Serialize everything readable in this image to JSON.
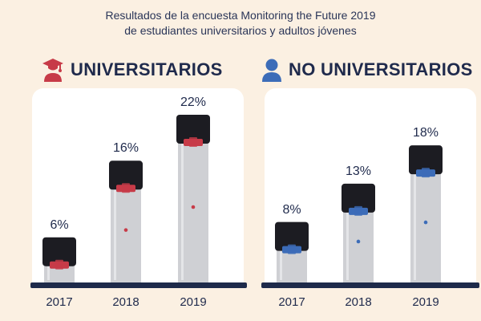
{
  "title": {
    "line1": "Resultados de la encuesta Monitoring the Future 2019",
    "line2": "de estudiantes universitarios y adultos jóvenes"
  },
  "colors": {
    "navy": "#1e2a4a",
    "red_accent": "#c73b48",
    "blue_accent": "#3c6cb8",
    "card_bg": "#ffffff",
    "page_bg": "#fbf0e2",
    "device_body": "#cfd0d4",
    "device_cap": "#1c1c22"
  },
  "chart_data": [
    {
      "type": "bar",
      "title": "UNIVERSITARIOS",
      "icon": "graduate-icon",
      "categories": [
        "2017",
        "2018",
        "2019"
      ],
      "values": [
        6,
        16,
        22
      ],
      "value_labels": [
        "6%",
        "16%",
        "22%"
      ],
      "ylim": [
        0,
        22
      ],
      "accent": "#c73b48"
    },
    {
      "type": "bar",
      "title": "NO UNIVERSITARIOS",
      "icon": "person-icon",
      "categories": [
        "2017",
        "2018",
        "2019"
      ],
      "values": [
        8,
        13,
        18
      ],
      "value_labels": [
        "8%",
        "13%",
        "18%"
      ],
      "ylim": [
        0,
        22
      ],
      "accent": "#3c6cb8"
    }
  ]
}
